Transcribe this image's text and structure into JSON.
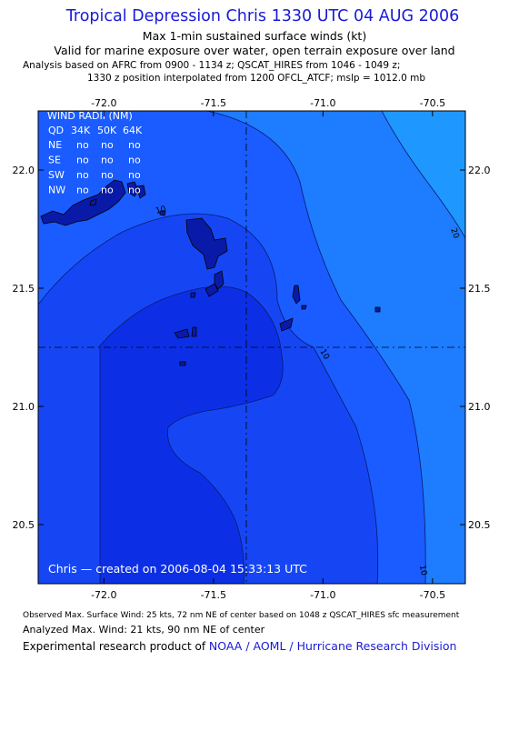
{
  "header": {
    "title": "Tropical Depression Chris 1330 UTC 04 AUG 2006",
    "subtitle1": "Max 1-min sustained surface winds (kt)",
    "subtitle2": "Valid for marine exposure over water, open terrain exposure over land",
    "analysis_line1": "Analysis based on  AFRC from 0900 - 1134 z;  QSCAT_HIRES from 1046 - 1049 z;",
    "analysis_line2": "1330 z position interpolated from 1200 OFCL_ATCF; mslp = 1012.0 mb"
  },
  "map": {
    "lon_ticks": [
      "-72.0",
      "-71.5",
      "-71.0",
      "-70.5"
    ],
    "lat_ticks": [
      "22.0",
      "21.5",
      "21.0",
      "20.5"
    ],
    "lon_range": [
      -72.3,
      -70.35
    ],
    "lat_range": [
      20.25,
      22.25
    ],
    "storm_center": {
      "lon": -71.35,
      "lat": 21.25
    },
    "contour_labels": [
      "10",
      "20",
      "10",
      "10"
    ],
    "credit": "Chris — created on 2006-08-04  15:33:13 UTC",
    "wind_radii": {
      "title": "WIND RADII (NM)",
      "columns": [
        "QD",
        "34K",
        "50K",
        "64K"
      ],
      "rows": [
        {
          "qd": "NE",
          "r34": "no",
          "r50": "no",
          "r64": "no"
        },
        {
          "qd": "SE",
          "r34": "no",
          "r50": "no",
          "r64": "no"
        },
        {
          "qd": "SW",
          "r34": "no",
          "r50": "no",
          "r64": "no"
        },
        {
          "qd": "NW",
          "r34": "no",
          "r50": "no",
          "r64": "no"
        }
      ]
    },
    "colors": {
      "band_lt10": "#0c2fe6",
      "band_10a": "#1646f4",
      "band_10b": "#1a5cff",
      "band_10_20": "#1e7cff",
      "band_gt20": "#1e98ff",
      "land": "#0a1aa8"
    }
  },
  "footer": {
    "line1": "Observed Max. Surface Wind: 25 kts, 72 nm NE of center based on 1048 z QSCAT_HIRES sfc measurement",
    "line2": "Analyzed Max. Wind: 21 kts, 90 nm NE of center",
    "line3_prefix": "Experimental research product of ",
    "line3_org": "NOAA / AOML / Hurricane Research Division"
  }
}
